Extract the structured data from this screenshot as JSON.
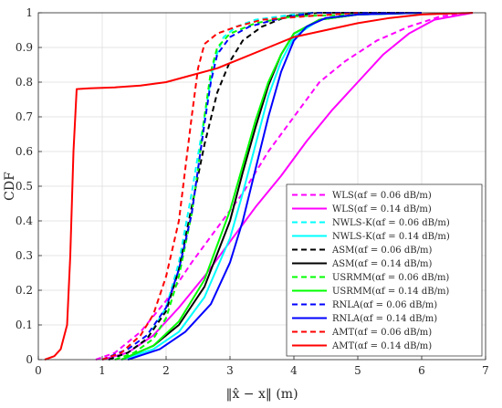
{
  "chart_data": {
    "type": "line",
    "title": "",
    "xlabel": "‖x̂ − x‖ (m)",
    "ylabel": "CDF",
    "xlim": [
      0,
      7
    ],
    "ylim": [
      0,
      1
    ],
    "xticks": [
      0,
      1,
      2,
      3,
      4,
      5,
      6,
      7
    ],
    "yticks": [
      0,
      0.1,
      0.2,
      0.3,
      0.4,
      0.5,
      0.6,
      0.7,
      0.8,
      0.9,
      1
    ],
    "xtick_labels": [
      "0",
      "1",
      "2",
      "3",
      "4",
      "5",
      "6",
      "7"
    ],
    "ytick_labels": [
      "0",
      "0.1",
      "0.2",
      "0.3",
      "0.4",
      "0.5",
      "0.6",
      "0.7",
      "0.8",
      "0.9",
      "1"
    ],
    "grid": true,
    "legend_position": "lower-right",
    "series": [
      {
        "name": "WLS(αf = 0.06 dB/m)",
        "color": "#ff00ff",
        "dash": "dashed",
        "x": [
          0.9,
          1.2,
          1.6,
          2.0,
          2.4,
          2.8,
          3.2,
          3.6,
          4.0,
          4.4,
          4.8,
          5.3,
          5.8,
          6.3,
          6.8
        ],
        "y": [
          0,
          0.02,
          0.08,
          0.17,
          0.28,
          0.38,
          0.48,
          0.6,
          0.7,
          0.8,
          0.86,
          0.92,
          0.96,
          0.99,
          1
        ]
      },
      {
        "name": "WLS(αf = 0.14 dB/m)",
        "color": "#ff00ff",
        "dash": "solid",
        "x": [
          1.0,
          1.4,
          1.8,
          2.2,
          2.6,
          3.0,
          3.4,
          3.8,
          4.2,
          4.6,
          5.0,
          5.4,
          5.8,
          6.2,
          6.8
        ],
        "y": [
          0,
          0.02,
          0.07,
          0.15,
          0.24,
          0.34,
          0.44,
          0.53,
          0.63,
          0.72,
          0.8,
          0.88,
          0.94,
          0.98,
          1
        ]
      },
      {
        "name": "NWLS-K(αf = 0.06 dB/m)",
        "color": "#00ffff",
        "dash": "dashed",
        "x": [
          1.1,
          1.4,
          1.7,
          2.0,
          2.2,
          2.4,
          2.6,
          2.75,
          2.9,
          3.1,
          3.4,
          3.8,
          4.2,
          6.0
        ],
        "y": [
          0,
          0.02,
          0.06,
          0.15,
          0.28,
          0.48,
          0.7,
          0.86,
          0.93,
          0.96,
          0.98,
          0.99,
          1,
          1
        ]
      },
      {
        "name": "NWLS-K(αf = 0.14 dB/m)",
        "color": "#00ffff",
        "dash": "solid",
        "x": [
          1.3,
          1.8,
          2.2,
          2.6,
          3.0,
          3.2,
          3.4,
          3.6,
          3.8,
          4.0,
          4.4,
          5.0,
          6.0
        ],
        "y": [
          0,
          0.03,
          0.08,
          0.18,
          0.35,
          0.48,
          0.62,
          0.76,
          0.86,
          0.93,
          0.98,
          0.995,
          1
        ]
      },
      {
        "name": "ASM(αf = 0.06 dB/m)",
        "color": "#000000",
        "dash": "dashed",
        "x": [
          1.1,
          1.4,
          1.7,
          2.0,
          2.2,
          2.4,
          2.6,
          2.8,
          3.0,
          3.2,
          3.5,
          3.9,
          4.4,
          6.0
        ],
        "y": [
          0,
          0.02,
          0.06,
          0.14,
          0.26,
          0.44,
          0.62,
          0.77,
          0.86,
          0.92,
          0.96,
          0.99,
          1,
          1
        ]
      },
      {
        "name": "ASM(αf = 0.14 dB/m)",
        "color": "#000000",
        "dash": "solid",
        "x": [
          1.3,
          1.8,
          2.2,
          2.6,
          3.0,
          3.2,
          3.4,
          3.6,
          3.8,
          4.0,
          4.4,
          5.0,
          6.0
        ],
        "y": [
          0,
          0.04,
          0.1,
          0.21,
          0.4,
          0.54,
          0.67,
          0.79,
          0.88,
          0.94,
          0.98,
          0.995,
          1
        ]
      },
      {
        "name": "USRMM(αf = 0.06 dB/m)",
        "color": "#00ff00",
        "dash": "dashed",
        "x": [
          1.2,
          1.5,
          1.8,
          2.0,
          2.2,
          2.4,
          2.5,
          2.6,
          2.7,
          2.8,
          3.0,
          3.4,
          4.0,
          6.0
        ],
        "y": [
          0,
          0.02,
          0.06,
          0.12,
          0.24,
          0.42,
          0.55,
          0.7,
          0.83,
          0.9,
          0.94,
          0.97,
          0.99,
          1
        ]
      },
      {
        "name": "USRMM(αf = 0.14 dB/m)",
        "color": "#00ff00",
        "dash": "solid",
        "x": [
          1.3,
          1.8,
          2.2,
          2.6,
          3.0,
          3.2,
          3.4,
          3.6,
          3.8,
          4.0,
          4.4,
          5.0,
          6.0
        ],
        "y": [
          0,
          0.04,
          0.11,
          0.23,
          0.43,
          0.56,
          0.69,
          0.8,
          0.88,
          0.94,
          0.98,
          0.995,
          1
        ]
      },
      {
        "name": "RNLA(αf = 0.06 dB/m)",
        "color": "#0000ff",
        "dash": "dashed",
        "x": [
          1.0,
          1.4,
          1.7,
          2.0,
          2.2,
          2.4,
          2.5,
          2.6,
          2.7,
          2.8,
          3.0,
          3.3,
          3.7,
          4.3,
          6.0
        ],
        "y": [
          0,
          0.03,
          0.07,
          0.15,
          0.26,
          0.42,
          0.55,
          0.68,
          0.8,
          0.88,
          0.93,
          0.96,
          0.98,
          1,
          1
        ]
      },
      {
        "name": "RNLA(αf = 0.14 dB/m)",
        "color": "#0000ff",
        "dash": "solid",
        "x": [
          1.4,
          1.9,
          2.3,
          2.7,
          3.0,
          3.2,
          3.4,
          3.6,
          3.8,
          4.0,
          4.2,
          4.5,
          5.0,
          6.0
        ],
        "y": [
          0,
          0.03,
          0.08,
          0.16,
          0.28,
          0.4,
          0.55,
          0.7,
          0.83,
          0.92,
          0.96,
          0.985,
          0.995,
          1
        ]
      },
      {
        "name": "AMT(αf = 0.06 dB/m)",
        "color": "#ff0000",
        "dash": "dashed",
        "x": [
          1.0,
          1.3,
          1.6,
          1.8,
          2.0,
          2.2,
          2.3,
          2.4,
          2.5,
          2.6,
          2.8,
          3.1,
          3.5,
          4.2,
          5.0
        ],
        "y": [
          0,
          0.02,
          0.07,
          0.13,
          0.24,
          0.4,
          0.55,
          0.7,
          0.84,
          0.91,
          0.94,
          0.96,
          0.98,
          0.99,
          1
        ]
      },
      {
        "name": "AMT(αf = 0.14 dB/m)",
        "color": "#ff0000",
        "dash": "solid",
        "x": [
          0.1,
          0.25,
          0.35,
          0.45,
          0.5,
          0.55,
          0.6,
          0.8,
          1.2,
          1.6,
          2.0,
          2.4,
          2.8,
          3.2,
          3.6,
          4.0,
          4.5,
          5.0,
          5.5,
          6.0,
          6.8
        ],
        "y": [
          0,
          0.01,
          0.03,
          0.1,
          0.3,
          0.6,
          0.78,
          0.782,
          0.785,
          0.79,
          0.8,
          0.82,
          0.84,
          0.87,
          0.9,
          0.93,
          0.95,
          0.97,
          0.985,
          0.995,
          1
        ]
      }
    ]
  }
}
